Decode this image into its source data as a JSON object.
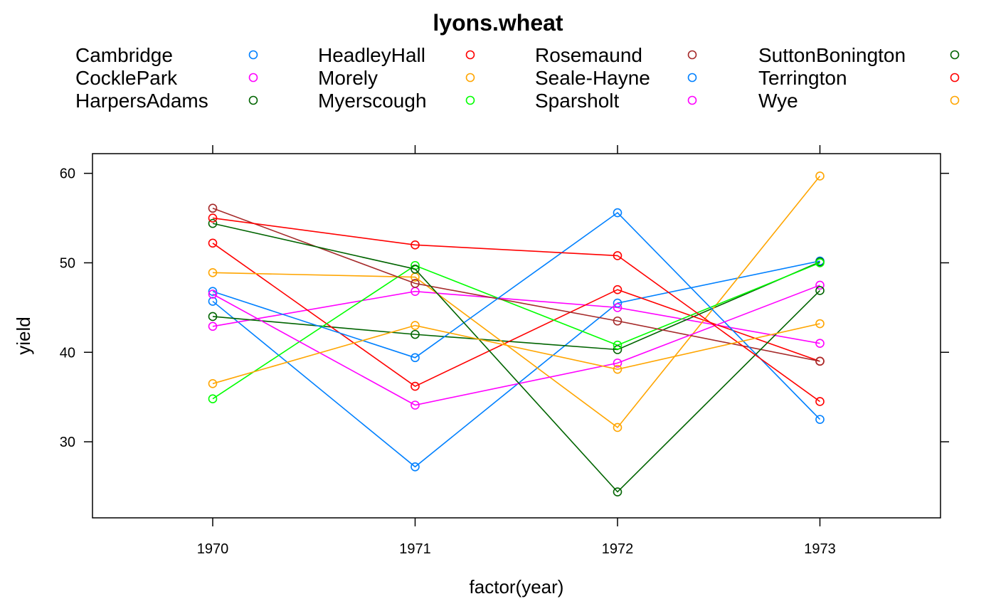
{
  "chart_data": {
    "type": "line",
    "title": "lyons.wheat",
    "xlabel": "factor(year)",
    "ylabel": "yield",
    "categories": [
      "1970",
      "1971",
      "1972",
      "1973"
    ],
    "ylim": [
      21.5,
      62.2
    ],
    "yticks": [
      30,
      40,
      50,
      60
    ],
    "grid": false,
    "legend": {
      "placement": "top",
      "columns": 4,
      "marker": "open-circle",
      "entries": [
        {
          "name": "Cambridge",
          "color": "#0080ff"
        },
        {
          "name": "CocklePark",
          "color": "#ff00ff"
        },
        {
          "name": "HarpersAdams",
          "color": "#006400"
        },
        {
          "name": "HeadleyHall",
          "color": "#ff0000"
        },
        {
          "name": "Morely",
          "color": "#ffa500"
        },
        {
          "name": "Myerscough",
          "color": "#00ff00"
        },
        {
          "name": "Rosemaund",
          "color": "#a52a2a"
        },
        {
          "name": "Seale-Hayne",
          "color": "#0080ff"
        },
        {
          "name": "Sparsholt",
          "color": "#ff00ff"
        },
        {
          "name": "SuttonBonington",
          "color": "#006400"
        },
        {
          "name": "Terrington",
          "color": "#ff0000"
        },
        {
          "name": "Wye",
          "color": "#ffa500"
        }
      ]
    },
    "series": [
      {
        "name": "Cambridge",
        "color": "#0080ff",
        "values": [
          45.7,
          27.2,
          45.5,
          50.2
        ]
      },
      {
        "name": "CocklePark",
        "color": "#ff00ff",
        "values": [
          42.9,
          46.8,
          45.0,
          41.0
        ]
      },
      {
        "name": "HarpersAdams",
        "color": "#006400",
        "values": [
          44.0,
          42.0,
          40.3,
          50.1
        ]
      },
      {
        "name": "HeadleyHall",
        "color": "#ff0000",
        "values": [
          52.2,
          36.2,
          47.0,
          39.0
        ]
      },
      {
        "name": "Morely",
        "color": "#ffa500",
        "values": [
          48.9,
          48.4,
          31.6,
          59.7
        ]
      },
      {
        "name": "Myerscough",
        "color": "#00ff00",
        "values": [
          34.8,
          49.7,
          40.8,
          50.0
        ]
      },
      {
        "name": "Rosemaund",
        "color": "#a52a2a",
        "values": [
          56.1,
          47.7,
          43.5,
          39.0
        ]
      },
      {
        "name": "Seale-Hayne",
        "color": "#0080ff",
        "values": [
          46.8,
          39.4,
          55.6,
          32.5
        ]
      },
      {
        "name": "Sparsholt",
        "color": "#ff00ff",
        "values": [
          46.5,
          34.1,
          38.8,
          47.5
        ]
      },
      {
        "name": "SuttonBonington",
        "color": "#006400",
        "values": [
          54.4,
          49.3,
          24.4,
          46.9
        ]
      },
      {
        "name": "Terrington",
        "color": "#ff0000",
        "values": [
          55.0,
          52.0,
          50.8,
          34.5
        ]
      },
      {
        "name": "Wye",
        "color": "#ffa500",
        "values": [
          36.5,
          43.0,
          38.1,
          43.2
        ]
      }
    ]
  }
}
